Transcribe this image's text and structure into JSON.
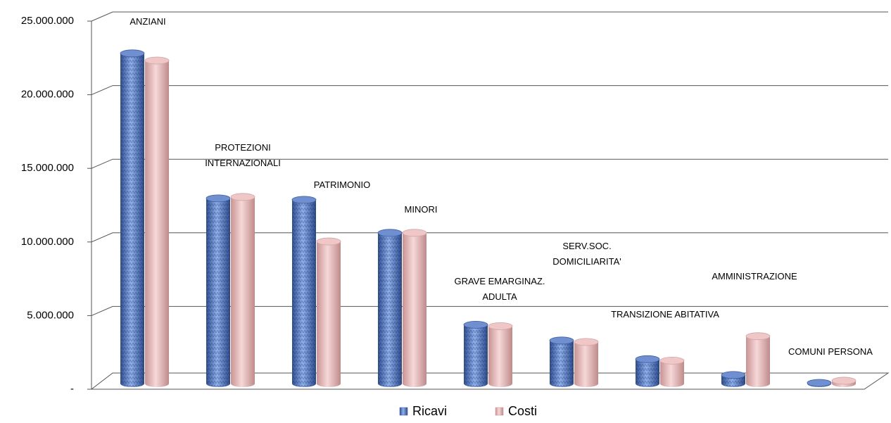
{
  "chart_data": {
    "type": "bar3d",
    "categories": [
      "ANZIANI",
      "PROTEZIONI INTERNAZIONALI",
      "PATRIMONIO",
      "MINORI",
      "GRAVE EMARGINAZ. ADULTA",
      "SERV.SOC. DOMICILIARITA'",
      "TRANSIZIONE ABITATIVA",
      "AMMINISTRAZIONE",
      "COMUNI PERSONA"
    ],
    "series": [
      {
        "name": "Ricavi",
        "color": "#5b7fc4",
        "values": [
          23000000,
          12900000,
          12800000,
          10500000,
          4100000,
          3000000,
          1700000,
          600000,
          50000
        ]
      },
      {
        "name": "Costi",
        "color": "#e8b6b6",
        "values": [
          22500000,
          13000000,
          9900000,
          10500000,
          4000000,
          2900000,
          1600000,
          3300000,
          200000
        ]
      }
    ],
    "ylim": [
      0,
      25000000
    ],
    "yticks": [
      {
        "value": 0,
        "label": "-"
      },
      {
        "value": 5000000,
        "label": "5.000.000"
      },
      {
        "value": 10000000,
        "label": "10.000.000"
      },
      {
        "value": 15000000,
        "label": "15.000.000"
      },
      {
        "value": 20000000,
        "label": "20.000.000"
      },
      {
        "value": 25000000,
        "label": "25.000.000"
      }
    ],
    "grid": true,
    "legend": "bottom"
  }
}
